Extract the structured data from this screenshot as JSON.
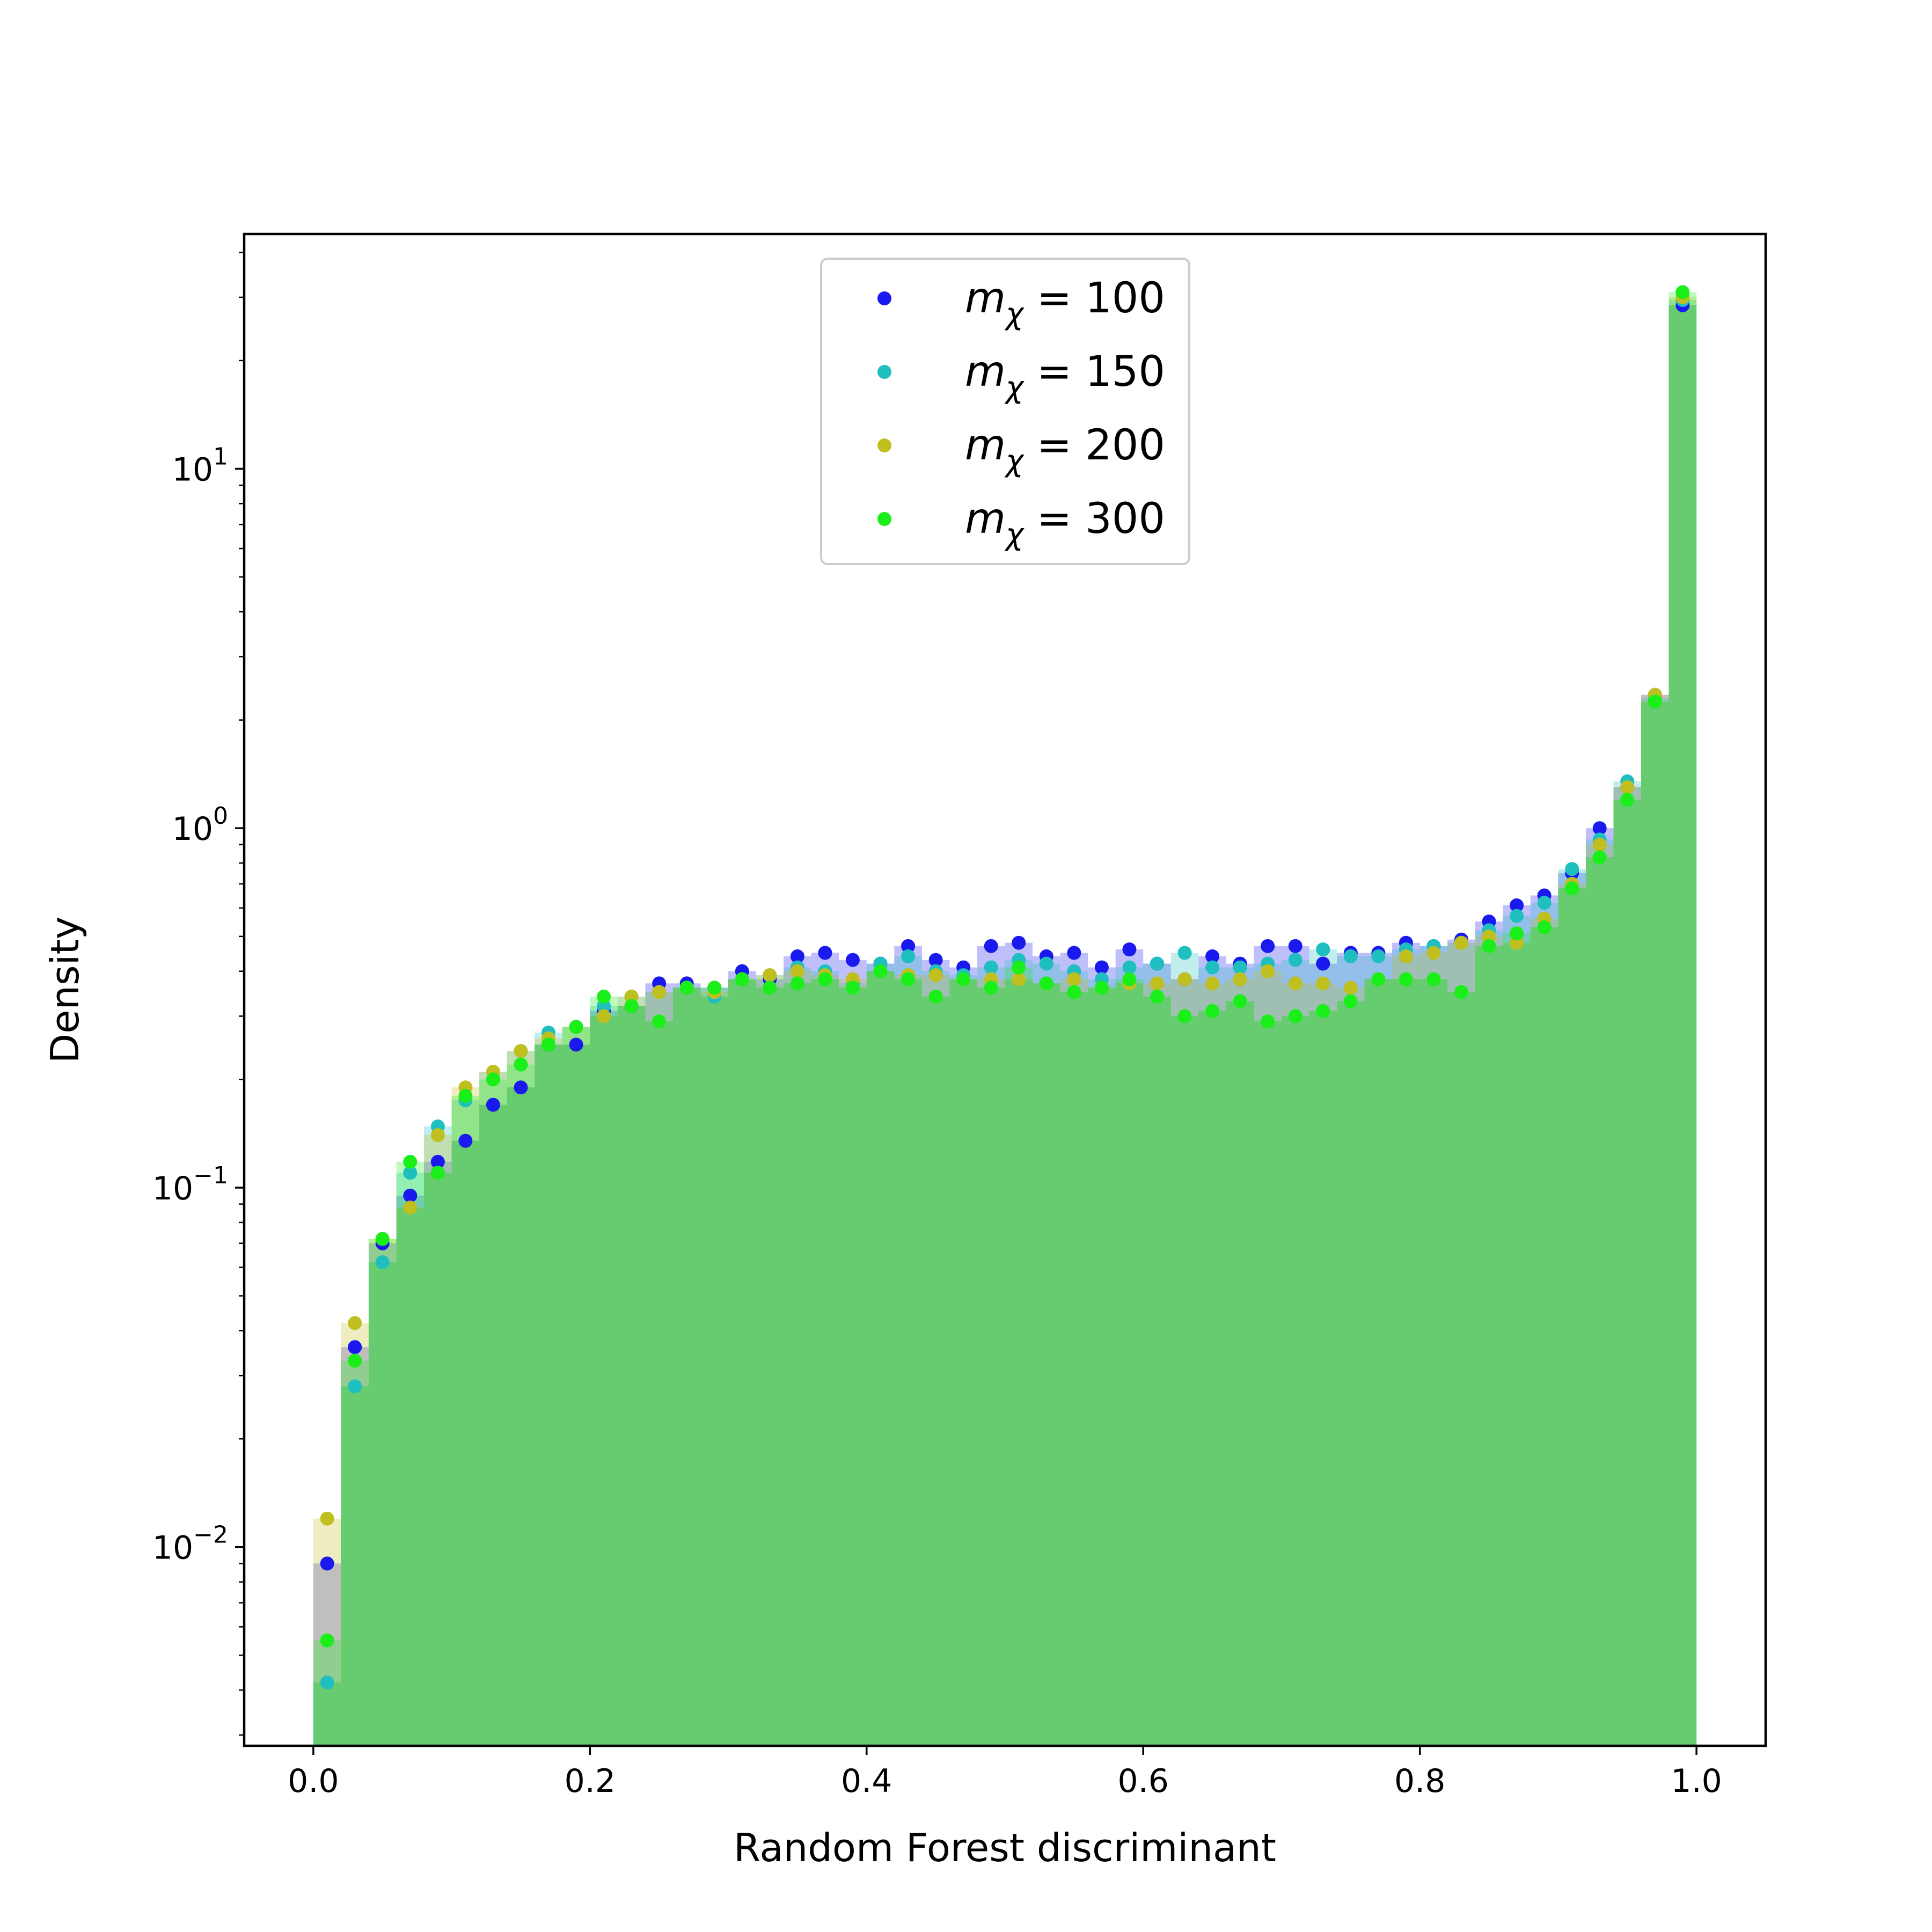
{
  "chart_data": {
    "type": "histogram",
    "xlabel": "Random Forest discriminant",
    "ylabel": "Density",
    "xlim": [
      -0.05,
      1.05
    ],
    "ylim": [
      0.0028,
      45
    ],
    "yscale": "log",
    "grid": false,
    "legend_position": "top-center",
    "fill_color": "#66cc6f",
    "bin_edges_start": 0.0,
    "bin_width": 0.02,
    "x_ticks": [
      {
        "value": 0.0,
        "label": "0.0"
      },
      {
        "value": 0.2,
        "label": "0.2"
      },
      {
        "value": 0.4,
        "label": "0.4"
      },
      {
        "value": 0.6,
        "label": "0.6"
      },
      {
        "value": 0.8,
        "label": "0.8"
      },
      {
        "value": 1.0,
        "label": "1.0"
      }
    ],
    "y_ticks": [
      {
        "value": 0.01,
        "base": "10",
        "exp": "−2"
      },
      {
        "value": 0.1,
        "base": "10",
        "exp": "−1"
      },
      {
        "value": 1,
        "base": "10",
        "exp": "0"
      },
      {
        "value": 10,
        "base": "10",
        "exp": "1"
      }
    ],
    "series": [
      {
        "name": "m_χ = 100",
        "legend": {
          "sym": "m",
          "sub": "χ",
          "rest": " = 100"
        },
        "color": "#1a1aef",
        "values": [
          0.009,
          0.036,
          0.07,
          0.095,
          0.118,
          0.135,
          0.17,
          0.19,
          0.25,
          0.25,
          0.31,
          0.32,
          0.37,
          0.37,
          0.36,
          0.4,
          0.38,
          0.44,
          0.45,
          0.43,
          0.42,
          0.47,
          0.43,
          0.41,
          0.47,
          0.48,
          0.44,
          0.45,
          0.41,
          0.46,
          0.42,
          0.38,
          0.44,
          0.42,
          0.47,
          0.47,
          0.42,
          0.45,
          0.45,
          0.48,
          0.47,
          0.49,
          0.55,
          0.61,
          0.65,
          0.75,
          1.0,
          1.3,
          2.35,
          28.5
        ]
      },
      {
        "name": "m_χ = 150",
        "legend": {
          "sym": "m",
          "sub": "χ",
          "rest": " = 150"
        },
        "color": "#1fbfbf",
        "values": [
          0.0042,
          0.028,
          0.062,
          0.11,
          0.148,
          0.175,
          0.21,
          0.24,
          0.27,
          0.28,
          0.32,
          0.34,
          0.35,
          0.36,
          0.34,
          0.38,
          0.39,
          0.41,
          0.4,
          0.37,
          0.42,
          0.44,
          0.4,
          0.39,
          0.41,
          0.43,
          0.42,
          0.4,
          0.38,
          0.41,
          0.42,
          0.45,
          0.41,
          0.41,
          0.42,
          0.43,
          0.46,
          0.44,
          0.44,
          0.46,
          0.47,
          0.48,
          0.52,
          0.57,
          0.62,
          0.77,
          0.93,
          1.35,
          2.3,
          29.5
        ]
      },
      {
        "name": "m_χ = 200",
        "legend": {
          "sym": "m",
          "sub": "χ",
          "rest": " = 200"
        },
        "color": "#bfbf1f",
        "values": [
          0.012,
          0.042,
          0.072,
          0.088,
          0.14,
          0.19,
          0.21,
          0.24,
          0.26,
          0.28,
          0.3,
          0.34,
          0.35,
          0.36,
          0.35,
          0.38,
          0.39,
          0.4,
          0.39,
          0.38,
          0.4,
          0.39,
          0.39,
          0.38,
          0.38,
          0.38,
          0.37,
          0.38,
          0.36,
          0.37,
          0.37,
          0.38,
          0.37,
          0.38,
          0.4,
          0.37,
          0.37,
          0.36,
          0.38,
          0.44,
          0.45,
          0.48,
          0.5,
          0.48,
          0.56,
          0.7,
          0.9,
          1.3,
          2.35,
          30.0
        ]
      },
      {
        "name": "m_χ = 300",
        "legend": {
          "sym": "m",
          "sub": "χ",
          "rest": " = 300"
        },
        "color": "#1aef1a",
        "values": [
          0.0055,
          0.033,
          0.072,
          0.118,
          0.11,
          0.18,
          0.2,
          0.22,
          0.25,
          0.28,
          0.34,
          0.32,
          0.29,
          0.36,
          0.36,
          0.38,
          0.36,
          0.37,
          0.38,
          0.36,
          0.4,
          0.38,
          0.34,
          0.38,
          0.36,
          0.41,
          0.37,
          0.35,
          0.36,
          0.38,
          0.34,
          0.3,
          0.31,
          0.33,
          0.29,
          0.3,
          0.31,
          0.33,
          0.38,
          0.38,
          0.38,
          0.35,
          0.47,
          0.51,
          0.53,
          0.68,
          0.83,
          1.2,
          2.25,
          31.0
        ]
      }
    ]
  }
}
